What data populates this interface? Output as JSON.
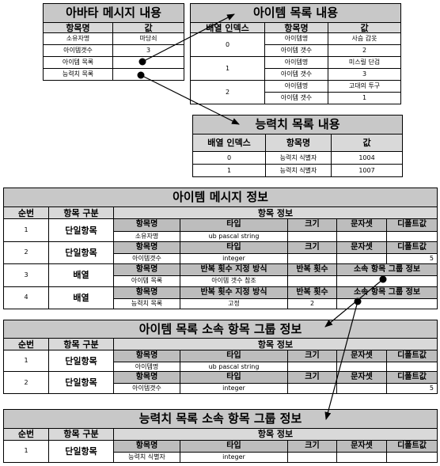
{
  "avatar_table": {
    "title": "아바타 메시지 내용",
    "headers": [
      "항목명",
      "값"
    ],
    "rows": [
      {
        "name": "소유자명",
        "value": "마당쇠"
      },
      {
        "name": "아이템갯수",
        "value": "3"
      },
      {
        "name": "아이템 목록",
        "value": ""
      },
      {
        "name": "능력치 목록",
        "value": ""
      }
    ]
  },
  "item_list_table": {
    "title": "아이템 목록 내용",
    "headers": [
      "배열 인덱스",
      "항목명",
      "값"
    ],
    "groups": [
      {
        "index": "0",
        "rows": [
          {
            "name": "아이템명",
            "value": "사슴 갑옷"
          },
          {
            "name": "아이템 갯수",
            "value": "2"
          }
        ]
      },
      {
        "index": "1",
        "rows": [
          {
            "name": "아이템명",
            "value": "미스릴 단검"
          },
          {
            "name": "아이템 갯수",
            "value": "3"
          }
        ]
      },
      {
        "index": "2",
        "rows": [
          {
            "name": "아이템명",
            "value": "고대의 투구"
          },
          {
            "name": "아이템 갯수",
            "value": "1"
          }
        ]
      }
    ]
  },
  "stat_list_table": {
    "title": "능력치 목록 내용",
    "headers": [
      "배열 인덱스",
      "항목명",
      "값"
    ],
    "rows": [
      {
        "index": "0",
        "name": "능력치 식별자",
        "value": "1004"
      },
      {
        "index": "1",
        "name": "능력치 식별자",
        "value": "1007"
      }
    ]
  },
  "item_message_info": {
    "title": "아이템 메시지 정보",
    "col_headers": {
      "seq": "순번",
      "kind": "항목 구분",
      "info": "항목 정보"
    },
    "sub_headers": {
      "name": "항목명",
      "type": "타입",
      "size": "크기",
      "charset": "문자셋",
      "default": "디폴트값"
    },
    "array_sub_headers": {
      "name": "항목명",
      "method": "반복 횟수 지정 방식",
      "count": "반복 횟수",
      "group": "소속 항목 그룹 정보"
    },
    "rows": [
      {
        "seq": "1",
        "kind": "단일항목",
        "name": "소유자명",
        "type": "ub pascal string",
        "size": "",
        "charset": "",
        "default": ""
      },
      {
        "seq": "2",
        "kind": "단일항목",
        "name": "아이템갯수",
        "type": "integer",
        "size": "",
        "charset": "",
        "default": "5"
      },
      {
        "seq": "3",
        "kind": "배열",
        "name": "아이템 목록",
        "method": "아이템 갯수 참조",
        "count": "",
        "group": ""
      },
      {
        "seq": "4",
        "kind": "배열",
        "name": "능력치 목록",
        "method": "고정",
        "count": "2",
        "group": ""
      }
    ]
  },
  "item_list_group_info": {
    "title": "아이템 목록 소속 항목 그룹 정보",
    "col_headers": {
      "seq": "순번",
      "kind": "항목 구분",
      "info": "항목 정보"
    },
    "sub_headers": {
      "name": "항목명",
      "type": "타입",
      "size": "크기",
      "charset": "문자셋",
      "default": "디폴트값"
    },
    "rows": [
      {
        "seq": "1",
        "kind": "단일항목",
        "name": "아이템명",
        "type": "ub pascal string",
        "size": "",
        "charset": "",
        "default": ""
      },
      {
        "seq": "2",
        "kind": "단일항목",
        "name": "아이템갯수",
        "type": "integer",
        "size": "",
        "charset": "",
        "default": "5"
      }
    ]
  },
  "stat_list_group_info": {
    "title": "능력치 목록 소속 항목 그룹 정보",
    "col_headers": {
      "seq": "순번",
      "kind": "항목 구분",
      "info": "항목 정보"
    },
    "sub_headers": {
      "name": "항목명",
      "type": "타입",
      "size": "크기",
      "charset": "문자셋",
      "default": "디폴트값"
    },
    "rows": [
      {
        "seq": "1",
        "kind": "단일항목",
        "name": "능력치 식별자",
        "type": "integer",
        "size": "",
        "charset": "",
        "default": ""
      }
    ]
  }
}
